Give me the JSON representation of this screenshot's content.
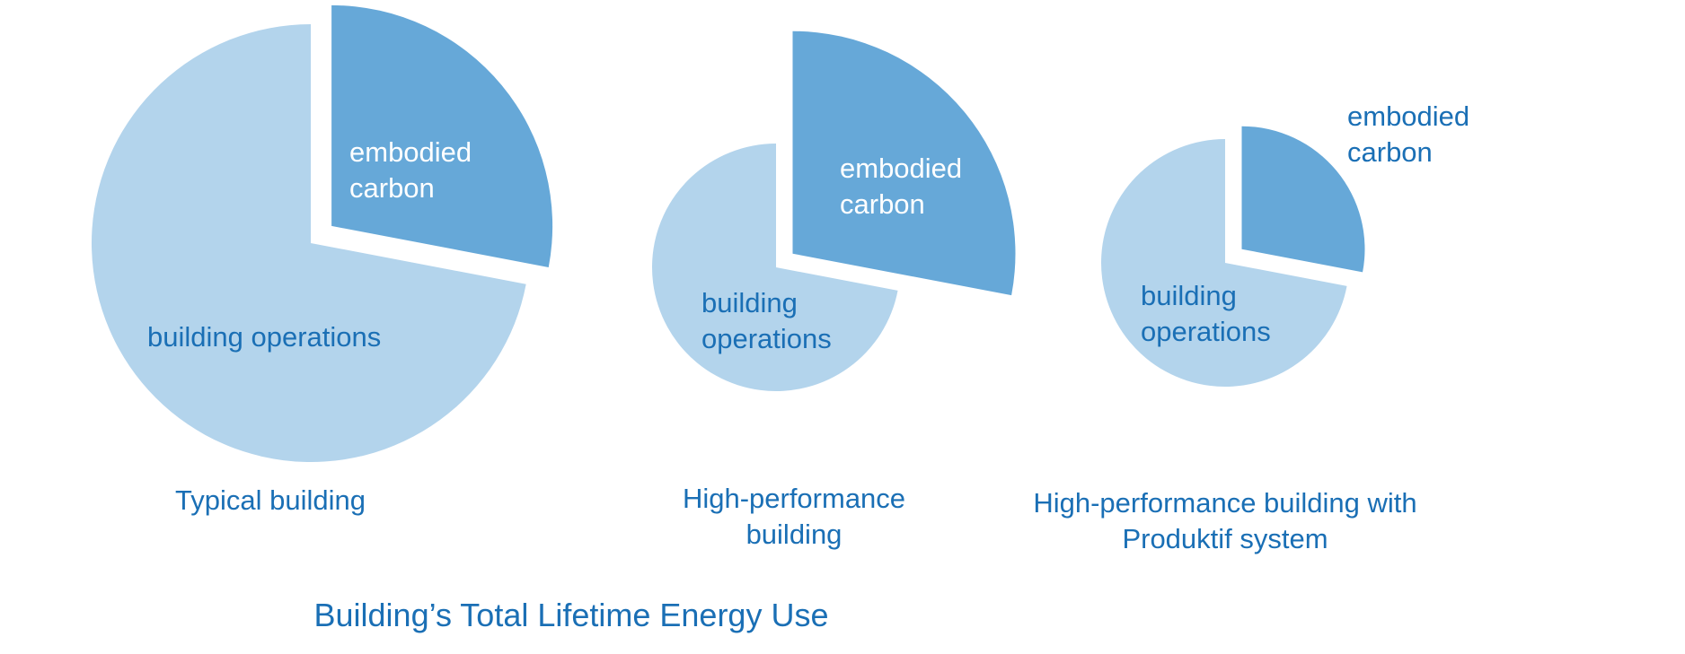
{
  "title": "Building’s Total Lifetime Energy Use",
  "chart_data": [
    {
      "type": "pie",
      "title": "Typical building",
      "categories": [
        "embodied carbon",
        "building operations"
      ],
      "values": [
        28,
        72
      ],
      "colors": [
        "#66a8d8",
        "#b3d4ec"
      ]
    },
    {
      "type": "pie",
      "title": "High-performance building",
      "categories": [
        "embodied carbon",
        "building operations"
      ],
      "values": [
        28,
        72
      ],
      "colors": [
        "#66a8d8",
        "#b3d4ec"
      ]
    },
    {
      "type": "pie",
      "title": "High-performance building with Produktif system",
      "categories": [
        "embodied carbon",
        "building operations"
      ],
      "values": [
        28,
        72
      ],
      "colors": [
        "#66a8d8",
        "#b3d4ec"
      ]
    }
  ]
}
